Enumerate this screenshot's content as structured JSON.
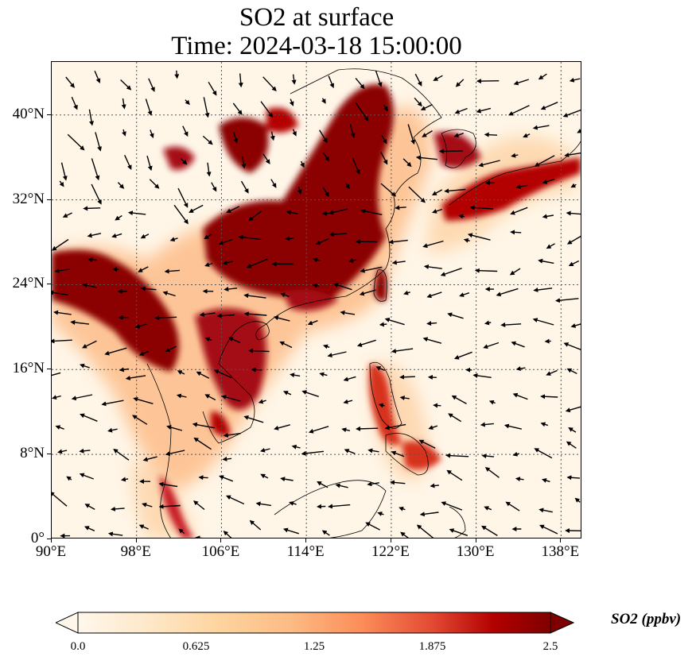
{
  "title_line1": "SO2 at surface",
  "title_line2": "Time: 2024-03-18 15:00:00",
  "map": {
    "lon_range": [
      90,
      140
    ],
    "lat_range": [
      0,
      45
    ],
    "lon_ticks": [
      "90°E",
      "98°E",
      "106°E",
      "114°E",
      "122°E",
      "130°E",
      "138°E"
    ],
    "lat_ticks": [
      "0°",
      "8°N",
      "16°N",
      "24°N",
      "32°N",
      "40°N"
    ],
    "lon_tick_values": [
      90,
      98,
      106,
      114,
      122,
      130,
      138
    ],
    "lat_tick_values": [
      0,
      8,
      16,
      24,
      32,
      40
    ],
    "colormap": "OrRd",
    "high_color": "#7f0000",
    "low_color": "#fff7ec"
  },
  "colorbar": {
    "label": "SO2 (ppbv)",
    "ticks": [
      "0.0",
      "0.625",
      "1.25",
      "1.875",
      "2.5"
    ],
    "range": [
      0,
      2.5
    ],
    "extend": "both"
  }
}
